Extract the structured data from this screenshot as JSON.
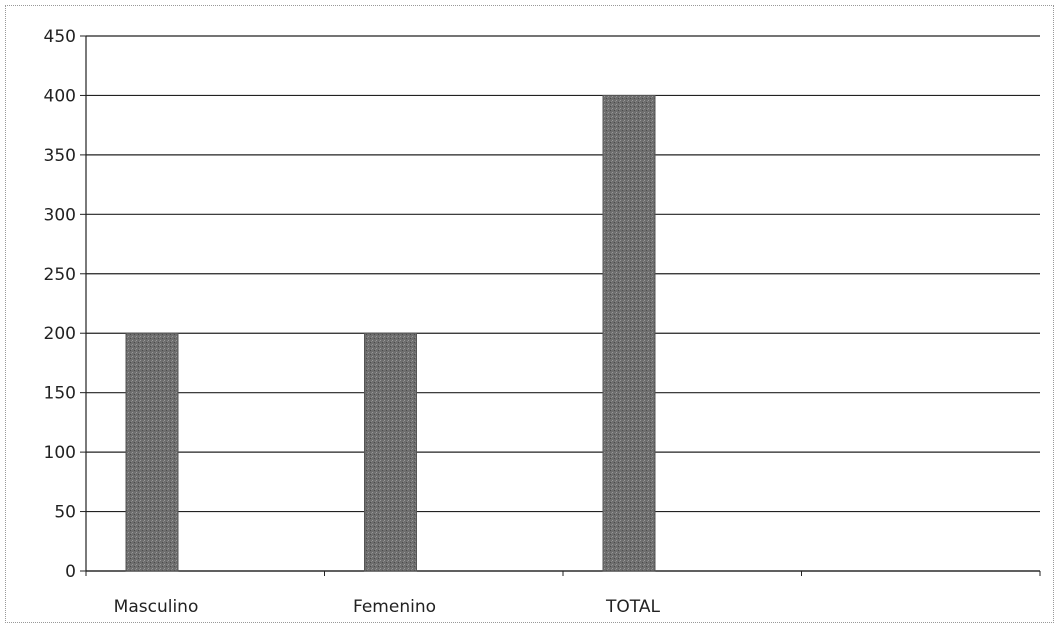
{
  "chart_data": {
    "type": "bar",
    "categories": [
      "Masculino",
      "Femenino",
      "TOTAL"
    ],
    "values": [
      200,
      200,
      400
    ],
    "ylim": [
      0,
      450
    ],
    "yticks": [
      0,
      50,
      100,
      150,
      200,
      250,
      300,
      350,
      400,
      450
    ],
    "grid": true,
    "bar_color": "#6e6e6e",
    "grid_color": "#222222"
  }
}
